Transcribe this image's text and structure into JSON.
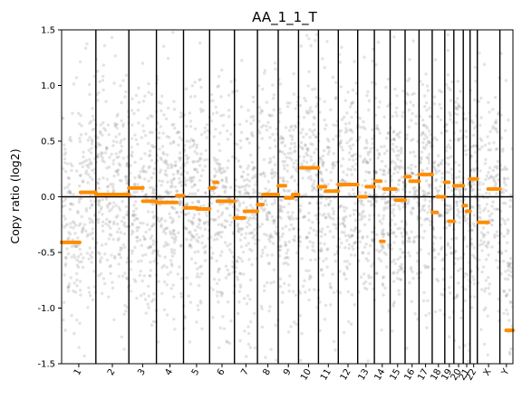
{
  "chart_data": {
    "type": "scatter",
    "title": "AA_1_1_T",
    "ylabel": "Copy ratio (log2)",
    "xlabel": "",
    "ylim": [
      -1.5,
      1.5
    ],
    "yticks": [
      -1.5,
      -1.0,
      -0.5,
      0.0,
      0.5,
      1.0,
      1.5
    ],
    "grid": false,
    "legend": "none",
    "colors": {
      "points": "#808080",
      "segments": "#ff8c00",
      "axes": "#000000"
    },
    "chromosomes": [
      {
        "name": "1",
        "start": 0.0,
        "end": 0.076
      },
      {
        "name": "2",
        "start": 0.076,
        "end": 0.149
      },
      {
        "name": "3",
        "start": 0.149,
        "end": 0.21
      },
      {
        "name": "4",
        "start": 0.21,
        "end": 0.27
      },
      {
        "name": "5",
        "start": 0.27,
        "end": 0.328
      },
      {
        "name": "6",
        "start": 0.328,
        "end": 0.383
      },
      {
        "name": "7",
        "start": 0.383,
        "end": 0.434
      },
      {
        "name": "8",
        "start": 0.434,
        "end": 0.48
      },
      {
        "name": "9",
        "start": 0.48,
        "end": 0.525
      },
      {
        "name": "10",
        "start": 0.525,
        "end": 0.569
      },
      {
        "name": "11",
        "start": 0.569,
        "end": 0.613
      },
      {
        "name": "12",
        "start": 0.613,
        "end": 0.656
      },
      {
        "name": "13",
        "start": 0.656,
        "end": 0.693
      },
      {
        "name": "14",
        "start": 0.693,
        "end": 0.728
      },
      {
        "name": "15",
        "start": 0.728,
        "end": 0.761
      },
      {
        "name": "16",
        "start": 0.761,
        "end": 0.792
      },
      {
        "name": "17",
        "start": 0.792,
        "end": 0.821
      },
      {
        "name": "18",
        "start": 0.821,
        "end": 0.849
      },
      {
        "name": "19",
        "start": 0.849,
        "end": 0.869
      },
      {
        "name": "20",
        "start": 0.869,
        "end": 0.89
      },
      {
        "name": "21",
        "start": 0.89,
        "end": 0.905
      },
      {
        "name": "22",
        "start": 0.905,
        "end": 0.921
      },
      {
        "name": "X",
        "start": 0.921,
        "end": 0.971
      },
      {
        "name": "Y",
        "start": 0.971,
        "end": 1.0
      }
    ],
    "segments": [
      {
        "chrom": "1",
        "x0": 0.0,
        "x1": 0.04,
        "y": -0.41
      },
      {
        "chrom": "1",
        "x0": 0.042,
        "x1": 0.076,
        "y": 0.04
      },
      {
        "chrom": "2",
        "x0": 0.076,
        "x1": 0.149,
        "y": 0.02
      },
      {
        "chrom": "3",
        "x0": 0.149,
        "x1": 0.18,
        "y": 0.08
      },
      {
        "chrom": "3",
        "x0": 0.18,
        "x1": 0.21,
        "y": -0.04
      },
      {
        "chrom": "4",
        "x0": 0.21,
        "x1": 0.255,
        "y": -0.05
      },
      {
        "chrom": "4",
        "x0": 0.255,
        "x1": 0.27,
        "y": 0.01
      },
      {
        "chrom": "5",
        "x0": 0.272,
        "x1": 0.3,
        "y": -0.1
      },
      {
        "chrom": "5",
        "x0": 0.3,
        "x1": 0.328,
        "y": -0.11
      },
      {
        "chrom": "6",
        "x0": 0.328,
        "x1": 0.338,
        "y": 0.08
      },
      {
        "chrom": "6",
        "x0": 0.338,
        "x1": 0.345,
        "y": 0.13
      },
      {
        "chrom": "6",
        "x0": 0.345,
        "x1": 0.383,
        "y": -0.04
      },
      {
        "chrom": "7",
        "x0": 0.383,
        "x1": 0.405,
        "y": -0.19
      },
      {
        "chrom": "7",
        "x0": 0.405,
        "x1": 0.434,
        "y": -0.13
      },
      {
        "chrom": "8",
        "x0": 0.434,
        "x1": 0.446,
        "y": -0.07
      },
      {
        "chrom": "8",
        "x0": 0.446,
        "x1": 0.48,
        "y": 0.02
      },
      {
        "chrom": "9",
        "x0": 0.48,
        "x1": 0.496,
        "y": 0.1
      },
      {
        "chrom": "9",
        "x0": 0.496,
        "x1": 0.512,
        "y": -0.01
      },
      {
        "chrom": "9",
        "x0": 0.512,
        "x1": 0.525,
        "y": 0.02
      },
      {
        "chrom": "10",
        "x0": 0.53,
        "x1": 0.569,
        "y": 0.26
      },
      {
        "chrom": "11",
        "x0": 0.569,
        "x1": 0.585,
        "y": 0.09
      },
      {
        "chrom": "11",
        "x0": 0.585,
        "x1": 0.613,
        "y": 0.05
      },
      {
        "chrom": "12",
        "x0": 0.613,
        "x1": 0.656,
        "y": 0.11
      },
      {
        "chrom": "13",
        "x0": 0.658,
        "x1": 0.675,
        "y": 0.0
      },
      {
        "chrom": "13",
        "x0": 0.675,
        "x1": 0.693,
        "y": 0.09
      },
      {
        "chrom": "14",
        "x0": 0.695,
        "x1": 0.707,
        "y": 0.14
      },
      {
        "chrom": "14",
        "x0": 0.707,
        "x1": 0.714,
        "y": -0.4
      },
      {
        "chrom": "14",
        "x0": 0.714,
        "x1": 0.728,
        "y": 0.07
      },
      {
        "chrom": "15",
        "x0": 0.728,
        "x1": 0.74,
        "y": 0.07
      },
      {
        "chrom": "15",
        "x0": 0.74,
        "x1": 0.761,
        "y": -0.03
      },
      {
        "chrom": "16",
        "x0": 0.761,
        "x1": 0.772,
        "y": 0.18
      },
      {
        "chrom": "16",
        "x0": 0.772,
        "x1": 0.792,
        "y": 0.14
      },
      {
        "chrom": "17",
        "x0": 0.792,
        "x1": 0.821,
        "y": 0.2
      },
      {
        "chrom": "18",
        "x0": 0.821,
        "x1": 0.832,
        "y": -0.14
      },
      {
        "chrom": "18",
        "x0": 0.832,
        "x1": 0.849,
        "y": 0.0
      },
      {
        "chrom": "19",
        "x0": 0.849,
        "x1": 0.858,
        "y": 0.13
      },
      {
        "chrom": "19",
        "x0": 0.858,
        "x1": 0.869,
        "y": -0.22
      },
      {
        "chrom": "20",
        "x0": 0.869,
        "x1": 0.89,
        "y": 0.1
      },
      {
        "chrom": "21",
        "x0": 0.89,
        "x1": 0.897,
        "y": -0.08
      },
      {
        "chrom": "21",
        "x0": 0.897,
        "x1": 0.905,
        "y": -0.13
      },
      {
        "chrom": "22",
        "x0": 0.905,
        "x1": 0.921,
        "y": 0.16
      },
      {
        "chrom": "X",
        "x0": 0.923,
        "x1": 0.945,
        "y": -0.23
      },
      {
        "chrom": "X",
        "x0": 0.945,
        "x1": 0.971,
        "y": 0.07
      },
      {
        "chrom": "Y",
        "x0": 0.985,
        "x1": 1.0,
        "y": -1.2
      }
    ]
  }
}
